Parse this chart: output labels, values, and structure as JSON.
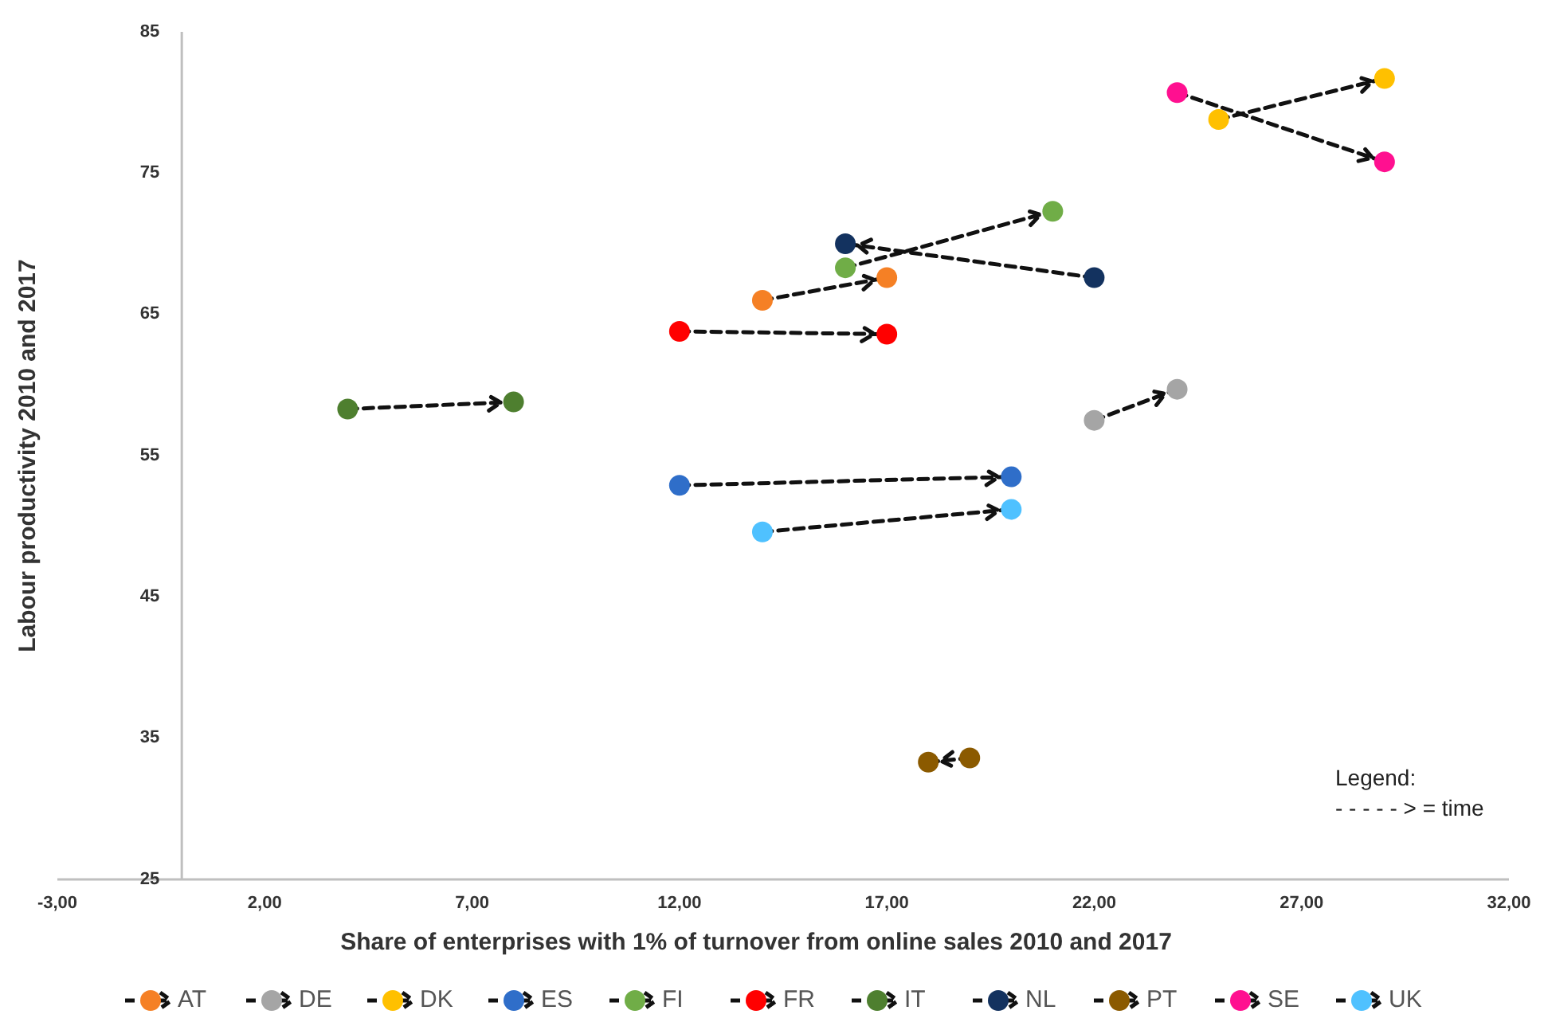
{
  "chart_data": {
    "type": "scatter",
    "xlabel": "Share of enterprises with 1% of turnover from online sales 2010 and 2017",
    "ylabel": "Labour productivity 2010 and 2017",
    "xlim": [
      -3,
      32
    ],
    "xticks": [
      {
        "value": -3,
        "label": "-3,00"
      },
      {
        "value": 2,
        "label": "2,00"
      },
      {
        "value": 7,
        "label": "7,00"
      },
      {
        "value": 12,
        "label": "12,00"
      },
      {
        "value": 17,
        "label": "17,00"
      },
      {
        "value": 22,
        "label": "22,00"
      },
      {
        "value": 27,
        "label": "27,00"
      },
      {
        "value": 32,
        "label": "32,00"
      }
    ],
    "ylim": [
      25,
      85
    ],
    "yticks": [
      25,
      35,
      45,
      55,
      65,
      75,
      85
    ],
    "grid": false,
    "legend": "bottom",
    "marker": "circle",
    "line_style": "dashed",
    "annotations": [
      "Legend:",
      "- - - - - > = time"
    ],
    "series": [
      {
        "name": "AT",
        "color": "#f58025",
        "x": [
          14,
          17
        ],
        "values": [
          66,
          67.6
        ]
      },
      {
        "name": "DE",
        "color": "#a5a5a5",
        "x": [
          22,
          24
        ],
        "values": [
          57.5,
          59.7
        ]
      },
      {
        "name": "DK",
        "color": "#ffc000",
        "x": [
          25,
          29
        ],
        "values": [
          78.8,
          81.7
        ]
      },
      {
        "name": "ES",
        "color": "#2f6ec9",
        "x": [
          12,
          20
        ],
        "values": [
          52.9,
          53.5
        ]
      },
      {
        "name": "FI",
        "color": "#70ad47",
        "x": [
          16,
          21
        ],
        "values": [
          68.3,
          72.3
        ]
      },
      {
        "name": "FR",
        "color": "#ff0000",
        "x": [
          12,
          17
        ],
        "values": [
          63.8,
          63.6
        ]
      },
      {
        "name": "IT",
        "color": "#4e7f2f",
        "x": [
          4,
          8
        ],
        "values": [
          58.3,
          58.8
        ]
      },
      {
        "name": "NL",
        "color": "#13325f",
        "x": [
          22,
          16
        ],
        "values": [
          67.6,
          70.0
        ]
      },
      {
        "name": "PT",
        "color": "#8b5a00",
        "x": [
          19,
          18
        ],
        "values": [
          33.6,
          33.3
        ]
      },
      {
        "name": "SE",
        "color": "#ff1090",
        "x": [
          24,
          29
        ],
        "values": [
          80.7,
          75.8
        ]
      },
      {
        "name": "UK",
        "color": "#4fc1ff",
        "x": [
          14,
          20
        ],
        "values": [
          49.6,
          51.2
        ]
      }
    ]
  }
}
